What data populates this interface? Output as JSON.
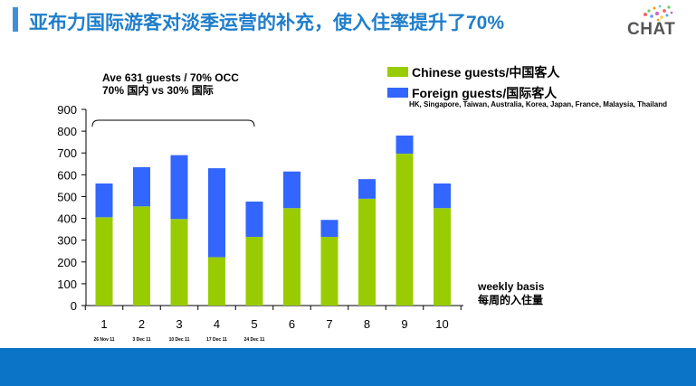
{
  "header": {
    "title": "亚布力国际游客对淡季运营的补充，使入住率提升了70%",
    "logo_text": "CHAT",
    "accent_color": "#1f7ecb"
  },
  "annotation": {
    "line1": "Ave 631 guests / 70% OCC",
    "line2": "70% 国内 vs 30% 国际"
  },
  "legend": {
    "items": [
      {
        "label": "Chinese guests/中国客人",
        "color": "#99cc00"
      },
      {
        "label": "Foreign guests/国际客人",
        "color": "#3366ff"
      }
    ],
    "countries_note": "HK, Singapore, Taiwan, Australia, Korea, Japan, France, Malaysia, Thailand"
  },
  "footnote": {
    "line1": "weekly basis",
    "line2": "每周的入住量"
  },
  "chart_data": {
    "type": "bar",
    "stacked": true,
    "categories": [
      "1",
      "2",
      "3",
      "4",
      "5",
      "6",
      "7",
      "8",
      "9",
      "10"
    ],
    "date_labels": [
      "26 Nov 11",
      "3 Dec 11",
      "10 Dec 11",
      "17 Dec 11",
      "24 Dec 11"
    ],
    "series": [
      {
        "name": "Chinese guests/中国客人",
        "color": "#99cc00",
        "values": [
          405,
          455,
          397,
          222,
          315,
          447,
          315,
          490,
          697,
          447
        ]
      },
      {
        "name": "Foreign guests/国际客人",
        "color": "#3366ff",
        "values": [
          155,
          180,
          293,
          408,
          162,
          168,
          78,
          90,
          83,
          113
        ]
      }
    ],
    "ylim": [
      0,
      900
    ],
    "yticks": [
      "0",
      "100",
      "200",
      "300",
      "400",
      "500",
      "600",
      "700",
      "800",
      "900"
    ],
    "grid": false,
    "legend_position": "top-right",
    "bracket": {
      "from_category": "1",
      "to_category": "5"
    }
  }
}
